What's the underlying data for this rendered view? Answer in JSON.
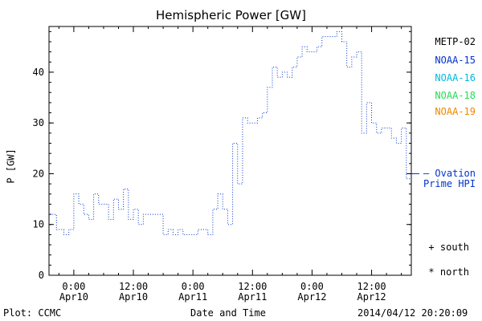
{
  "chart_data": {
    "type": "line",
    "title": "Hemispheric Power [GW]",
    "xlabel": "Date and Time",
    "ylabel": "P [GW]",
    "ylim": [
      0,
      49
    ],
    "xlim_hours": [
      -5,
      68
    ],
    "x_ticks": [
      {
        "hour": 0,
        "line1": "0:00",
        "line2": "Apr10"
      },
      {
        "hour": 12,
        "line1": "12:00",
        "line2": "Apr10"
      },
      {
        "hour": 24,
        "line1": "0:00",
        "line2": "Apr11"
      },
      {
        "hour": 36,
        "line1": "12:00",
        "line2": "Apr11"
      },
      {
        "hour": 48,
        "line1": "0:00",
        "line2": "Apr12"
      },
      {
        "hour": 60,
        "line1": "12:00",
        "line2": "Apr12"
      }
    ],
    "y_ticks": [
      0,
      10,
      20,
      30,
      40
    ],
    "grid": false,
    "series": [
      {
        "name": "NOAA-15",
        "color": "#0033cc",
        "style": "step-dotted",
        "x": [
          -4.8,
          -3.5,
          -2,
          -1,
          0,
          1,
          2,
          3,
          4,
          5,
          7,
          8,
          9,
          10,
          11,
          12,
          13,
          14,
          15,
          16,
          18,
          19,
          20,
          21,
          22,
          23,
          24,
          25,
          26,
          27,
          28,
          29,
          30,
          31,
          32,
          33,
          34,
          35,
          36,
          37,
          38,
          39,
          40,
          41,
          42,
          43,
          44,
          45,
          46,
          47,
          48,
          49,
          50,
          51,
          52,
          53,
          54,
          55,
          56,
          57,
          58,
          59,
          60,
          61,
          62,
          63,
          64,
          65,
          66,
          67
        ],
        "y": [
          12,
          9,
          8,
          9,
          16,
          14,
          12,
          11,
          16,
          14,
          11,
          15,
          13,
          17,
          11,
          13,
          10,
          12,
          12,
          12,
          8,
          9,
          8,
          9,
          8,
          8,
          8,
          9,
          9,
          8,
          13,
          16,
          13,
          10,
          26,
          18,
          31,
          30,
          30,
          31,
          32,
          37,
          41,
          39,
          40,
          39,
          41,
          43,
          45,
          44,
          44,
          45,
          47,
          47,
          47,
          48,
          46,
          41,
          43,
          44,
          28,
          34,
          30,
          28,
          29,
          29,
          27,
          26,
          29,
          19
        ]
      }
    ],
    "legend": [
      {
        "label": "METP-02",
        "color": "#000000"
      },
      {
        "label": "NOAA-15",
        "color": "#0033cc"
      },
      {
        "label": "NOAA-16",
        "color": "#00bbdd"
      },
      {
        "label": "NOAA-18",
        "color": "#22dd55"
      },
      {
        "label": "NOAA-19",
        "color": "#ee8800"
      }
    ],
    "ovation_label_line1": "Ovation",
    "ovation_label_line2": "Prime HPI",
    "ovation_dash": "—",
    "ovation_color": "#0033cc",
    "ovation_value": 20,
    "marker_south_label": "+ south",
    "marker_north_label": "* north"
  },
  "footer": {
    "plot_credit": "Plot: CCMC",
    "timestamp": "2014/04/12 20:20:09"
  }
}
